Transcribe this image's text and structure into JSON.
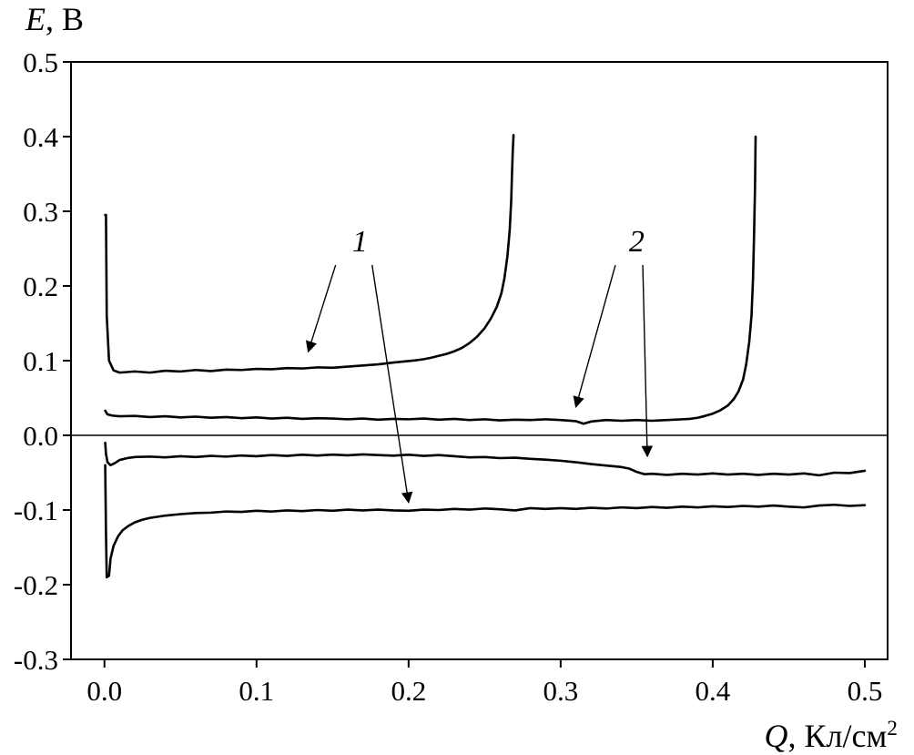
{
  "page": {
    "background": "#ffffff",
    "foreground": "#000000"
  },
  "axes": {
    "y_title": {
      "symbol": "E",
      "rest": ", В"
    },
    "x_title": {
      "symbol": "Q",
      "rest": ", Кл/см",
      "sup": "2"
    },
    "x_tick_labels": [
      "0.0",
      "0.1",
      "0.2",
      "0.3",
      "0.4",
      "0.5"
    ],
    "y_tick_labels": [
      "-0.3",
      "-0.2",
      "-0.1",
      "0.0",
      "0.1",
      "0.2",
      "0.3",
      "0.4",
      "0.5"
    ]
  },
  "chart_data": {
    "type": "line",
    "title": "",
    "xlabel": "Q, Кл/см²",
    "ylabel": "E, В",
    "xlim": [
      -0.022,
      0.515
    ],
    "ylim": [
      -0.3,
      0.5
    ],
    "x_ticks": [
      0,
      0.1,
      0.2,
      0.3,
      0.4,
      0.5
    ],
    "y_ticks": [
      -0.3,
      -0.2,
      -0.1,
      0,
      0.1,
      0.2,
      0.3,
      0.4,
      0.5
    ],
    "grid": false,
    "zero_line_y": 0,
    "line_color": "#000000",
    "legend": "none",
    "series": [
      {
        "name": "curve-1-charge-branch",
        "label": "1",
        "points": [
          [
            0.0005,
            0.295
          ],
          [
            0.001,
            0.295
          ],
          [
            0.0015,
            0.16
          ],
          [
            0.003,
            0.1
          ],
          [
            0.006,
            0.087
          ],
          [
            0.01,
            0.084
          ],
          [
            0.02,
            0.0855
          ],
          [
            0.03,
            0.084
          ],
          [
            0.04,
            0.0865
          ],
          [
            0.05,
            0.0855
          ],
          [
            0.06,
            0.0875
          ],
          [
            0.07,
            0.086
          ],
          [
            0.08,
            0.088
          ],
          [
            0.09,
            0.0875
          ],
          [
            0.1,
            0.089
          ],
          [
            0.11,
            0.0885
          ],
          [
            0.12,
            0.09
          ],
          [
            0.13,
            0.0895
          ],
          [
            0.14,
            0.091
          ],
          [
            0.15,
            0.0905
          ],
          [
            0.16,
            0.092
          ],
          [
            0.17,
            0.0935
          ],
          [
            0.18,
            0.095
          ],
          [
            0.19,
            0.0975
          ],
          [
            0.2,
            0.0995
          ],
          [
            0.205,
            0.1005
          ],
          [
            0.21,
            0.102
          ],
          [
            0.215,
            0.104
          ],
          [
            0.22,
            0.1065
          ],
          [
            0.225,
            0.109
          ],
          [
            0.23,
            0.1125
          ],
          [
            0.235,
            0.117
          ],
          [
            0.24,
            0.1235
          ],
          [
            0.245,
            0.132
          ],
          [
            0.25,
            0.1435
          ],
          [
            0.254,
            0.156
          ],
          [
            0.258,
            0.172
          ],
          [
            0.261,
            0.19
          ],
          [
            0.263,
            0.21
          ],
          [
            0.265,
            0.24
          ],
          [
            0.2665,
            0.275
          ],
          [
            0.2675,
            0.315
          ],
          [
            0.268,
            0.35
          ],
          [
            0.2685,
            0.38
          ],
          [
            0.269,
            0.402
          ]
        ]
      },
      {
        "name": "curve-2-charge-branch",
        "label": "2",
        "points": [
          [
            0.0005,
            0.033
          ],
          [
            0.002,
            0.028
          ],
          [
            0.005,
            0.0265
          ],
          [
            0.01,
            0.0255
          ],
          [
            0.02,
            0.026
          ],
          [
            0.03,
            0.0245
          ],
          [
            0.04,
            0.0255
          ],
          [
            0.05,
            0.024
          ],
          [
            0.06,
            0.025
          ],
          [
            0.07,
            0.0235
          ],
          [
            0.08,
            0.0245
          ],
          [
            0.09,
            0.023
          ],
          [
            0.1,
            0.024
          ],
          [
            0.11,
            0.0225
          ],
          [
            0.12,
            0.0235
          ],
          [
            0.13,
            0.022
          ],
          [
            0.14,
            0.023
          ],
          [
            0.15,
            0.0225
          ],
          [
            0.16,
            0.0215
          ],
          [
            0.17,
            0.0225
          ],
          [
            0.18,
            0.021
          ],
          [
            0.19,
            0.022
          ],
          [
            0.2,
            0.0215
          ],
          [
            0.21,
            0.0225
          ],
          [
            0.22,
            0.021
          ],
          [
            0.23,
            0.022
          ],
          [
            0.24,
            0.0205
          ],
          [
            0.25,
            0.0215
          ],
          [
            0.26,
            0.02
          ],
          [
            0.27,
            0.021
          ],
          [
            0.28,
            0.0205
          ],
          [
            0.29,
            0.0215
          ],
          [
            0.3,
            0.0205
          ],
          [
            0.31,
            0.019
          ],
          [
            0.315,
            0.0155
          ],
          [
            0.32,
            0.0185
          ],
          [
            0.33,
            0.0205
          ],
          [
            0.34,
            0.0195
          ],
          [
            0.35,
            0.0205
          ],
          [
            0.36,
            0.0195
          ],
          [
            0.37,
            0.0205
          ],
          [
            0.38,
            0.0215
          ],
          [
            0.385,
            0.022
          ],
          [
            0.39,
            0.0235
          ],
          [
            0.395,
            0.026
          ],
          [
            0.4,
            0.029
          ],
          [
            0.405,
            0.0335
          ],
          [
            0.41,
            0.04
          ],
          [
            0.414,
            0.049
          ],
          [
            0.417,
            0.059
          ],
          [
            0.42,
            0.075
          ],
          [
            0.422,
            0.095
          ],
          [
            0.424,
            0.125
          ],
          [
            0.4255,
            0.16
          ],
          [
            0.4265,
            0.21
          ],
          [
            0.4272,
            0.27
          ],
          [
            0.4278,
            0.33
          ],
          [
            0.4282,
            0.4
          ]
        ]
      },
      {
        "name": "curve-2-discharge-branch",
        "label": "2",
        "points": [
          [
            0.0005,
            -0.01
          ],
          [
            0.001,
            -0.025
          ],
          [
            0.002,
            -0.036
          ],
          [
            0.004,
            -0.04
          ],
          [
            0.007,
            -0.037
          ],
          [
            0.01,
            -0.033
          ],
          [
            0.015,
            -0.0305
          ],
          [
            0.02,
            -0.029
          ],
          [
            0.03,
            -0.0285
          ],
          [
            0.04,
            -0.0295
          ],
          [
            0.05,
            -0.028
          ],
          [
            0.06,
            -0.029
          ],
          [
            0.07,
            -0.0275
          ],
          [
            0.08,
            -0.0285
          ],
          [
            0.09,
            -0.027
          ],
          [
            0.1,
            -0.028
          ],
          [
            0.11,
            -0.0265
          ],
          [
            0.12,
            -0.0275
          ],
          [
            0.13,
            -0.026
          ],
          [
            0.14,
            -0.027
          ],
          [
            0.15,
            -0.0258
          ],
          [
            0.16,
            -0.0268
          ],
          [
            0.17,
            -0.0255
          ],
          [
            0.18,
            -0.0265
          ],
          [
            0.19,
            -0.0272
          ],
          [
            0.2,
            -0.026
          ],
          [
            0.21,
            -0.0275
          ],
          [
            0.22,
            -0.0265
          ],
          [
            0.23,
            -0.028
          ],
          [
            0.24,
            -0.0295
          ],
          [
            0.25,
            -0.029
          ],
          [
            0.26,
            -0.0305
          ],
          [
            0.27,
            -0.03
          ],
          [
            0.28,
            -0.0315
          ],
          [
            0.29,
            -0.0325
          ],
          [
            0.3,
            -0.034
          ],
          [
            0.31,
            -0.036
          ],
          [
            0.32,
            -0.0385
          ],
          [
            0.33,
            -0.0405
          ],
          [
            0.34,
            -0.0425
          ],
          [
            0.345,
            -0.0445
          ],
          [
            0.35,
            -0.049
          ],
          [
            0.355,
            -0.052
          ],
          [
            0.36,
            -0.0515
          ],
          [
            0.37,
            -0.053
          ],
          [
            0.38,
            -0.0515
          ],
          [
            0.39,
            -0.0525
          ],
          [
            0.4,
            -0.051
          ],
          [
            0.41,
            -0.0525
          ],
          [
            0.42,
            -0.0515
          ],
          [
            0.43,
            -0.053
          ],
          [
            0.44,
            -0.0515
          ],
          [
            0.45,
            -0.0525
          ],
          [
            0.46,
            -0.051
          ],
          [
            0.47,
            -0.0535
          ],
          [
            0.48,
            -0.05
          ],
          [
            0.49,
            -0.0505
          ],
          [
            0.5,
            -0.0475
          ]
        ]
      },
      {
        "name": "curve-1-discharge-branch",
        "label": "1",
        "points": [
          [
            0.0005,
            -0.04
          ],
          [
            0.001,
            -0.13
          ],
          [
            0.0015,
            -0.19
          ],
          [
            0.003,
            -0.188
          ],
          [
            0.004,
            -0.165
          ],
          [
            0.006,
            -0.148
          ],
          [
            0.009,
            -0.135
          ],
          [
            0.012,
            -0.127
          ],
          [
            0.016,
            -0.121
          ],
          [
            0.02,
            -0.1165
          ],
          [
            0.025,
            -0.113
          ],
          [
            0.03,
            -0.1105
          ],
          [
            0.04,
            -0.1075
          ],
          [
            0.05,
            -0.1055
          ],
          [
            0.06,
            -0.104
          ],
          [
            0.07,
            -0.1035
          ],
          [
            0.08,
            -0.102
          ],
          [
            0.09,
            -0.1025
          ],
          [
            0.1,
            -0.101
          ],
          [
            0.11,
            -0.102
          ],
          [
            0.12,
            -0.1005
          ],
          [
            0.13,
            -0.1015
          ],
          [
            0.14,
            -0.1
          ],
          [
            0.15,
            -0.101
          ],
          [
            0.16,
            -0.0995
          ],
          [
            0.17,
            -0.1005
          ],
          [
            0.18,
            -0.0995
          ],
          [
            0.19,
            -0.1005
          ],
          [
            0.2,
            -0.101
          ],
          [
            0.21,
            -0.0995
          ],
          [
            0.22,
            -0.1
          ],
          [
            0.23,
            -0.0985
          ],
          [
            0.24,
            -0.0995
          ],
          [
            0.25,
            -0.098
          ],
          [
            0.26,
            -0.099
          ],
          [
            0.27,
            -0.1005
          ],
          [
            0.28,
            -0.0975
          ],
          [
            0.29,
            -0.0985
          ],
          [
            0.3,
            -0.0975
          ],
          [
            0.31,
            -0.0985
          ],
          [
            0.32,
            -0.097
          ],
          [
            0.33,
            -0.098
          ],
          [
            0.34,
            -0.0965
          ],
          [
            0.35,
            -0.0975
          ],
          [
            0.36,
            -0.096
          ],
          [
            0.37,
            -0.097
          ],
          [
            0.38,
            -0.0955
          ],
          [
            0.39,
            -0.0965
          ],
          [
            0.4,
            -0.095
          ],
          [
            0.41,
            -0.096
          ],
          [
            0.42,
            -0.0945
          ],
          [
            0.43,
            -0.0955
          ],
          [
            0.44,
            -0.094
          ],
          [
            0.45,
            -0.0955
          ],
          [
            0.46,
            -0.0965
          ],
          [
            0.47,
            -0.094
          ],
          [
            0.48,
            -0.093
          ],
          [
            0.49,
            -0.0945
          ],
          [
            0.5,
            -0.0935
          ]
        ]
      }
    ],
    "annotations": [
      {
        "label": "1",
        "x": 0.168,
        "y": 0.26,
        "arrows": [
          {
            "from": [
              0.152,
              0.228
            ],
            "to": [
              0.134,
              0.112
            ]
          },
          {
            "from": [
              0.176,
              0.228
            ],
            "to": [
              0.2,
              -0.09
            ]
          }
        ]
      },
      {
        "label": "2",
        "x": 0.35,
        "y": 0.26,
        "arrows": [
          {
            "from": [
              0.336,
              0.228
            ],
            "to": [
              0.31,
              0.038
            ]
          },
          {
            "from": [
              0.354,
              0.228
            ],
            "to": [
              0.357,
              -0.028
            ]
          }
        ]
      }
    ]
  }
}
